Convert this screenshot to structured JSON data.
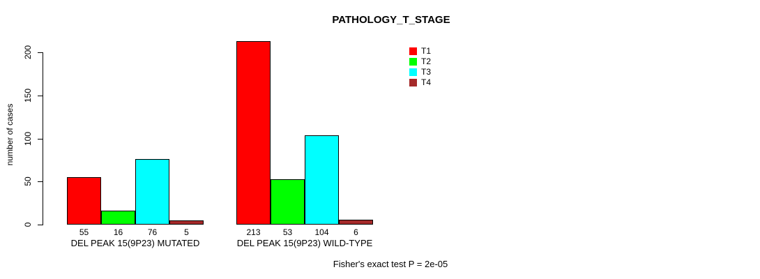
{
  "title": "PATHOLOGY_T_STAGE",
  "footer": "Fisher's exact test P = 2e-05",
  "chart_data": {
    "type": "bar",
    "title": "PATHOLOGY_T_STAGE",
    "xlabel": "",
    "ylabel": "number of cases",
    "ylim": [
      0,
      200
    ],
    "yticks": [
      0,
      50,
      100,
      150,
      200
    ],
    "grid": false,
    "legend_position": "top-right-inside",
    "categories": [
      "DEL PEAK 15(9P23) MUTATED",
      "DEL PEAK 15(9P23) WILD-TYPE"
    ],
    "series": [
      {
        "name": "T1",
        "color": "#ff0000",
        "values": [
          55,
          213
        ]
      },
      {
        "name": "T2",
        "color": "#00ff00",
        "values": [
          16,
          53
        ]
      },
      {
        "name": "T3",
        "color": "#00ffff",
        "values": [
          76,
          104
        ]
      },
      {
        "name": "T4",
        "color": "#a52a2a",
        "values": [
          5,
          6
        ]
      }
    ],
    "bar_value_labels": [
      [
        "55",
        "16",
        "76",
        "5"
      ],
      [
        "213",
        "53",
        "104",
        "6"
      ]
    ],
    "annotation": "Fisher's exact test P = 2e-05"
  }
}
